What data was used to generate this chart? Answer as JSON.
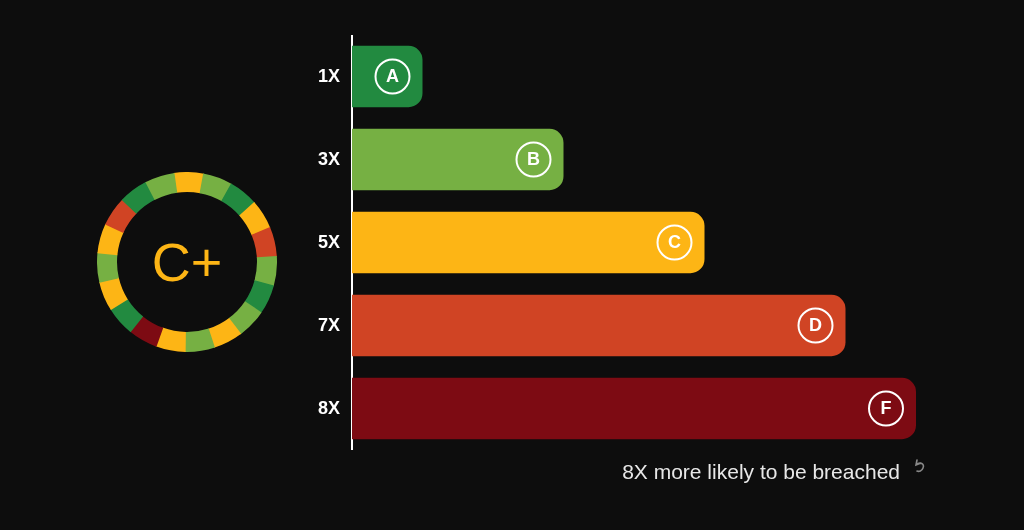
{
  "chart_data": {
    "type": "bar",
    "orientation": "horizontal",
    "categories": [
      "A",
      "B",
      "C",
      "D",
      "F"
    ],
    "values": [
      1,
      3,
      5,
      7,
      8
    ],
    "colors": [
      "#228a40",
      "#76b043",
      "#fdb515",
      "#d04424",
      "#7d0b13"
    ],
    "value_labels": [
      "1X",
      "3X",
      "5X",
      "7X",
      "8X"
    ],
    "annotations": [
      "C+",
      "8X more likely to be breached"
    ]
  }
}
